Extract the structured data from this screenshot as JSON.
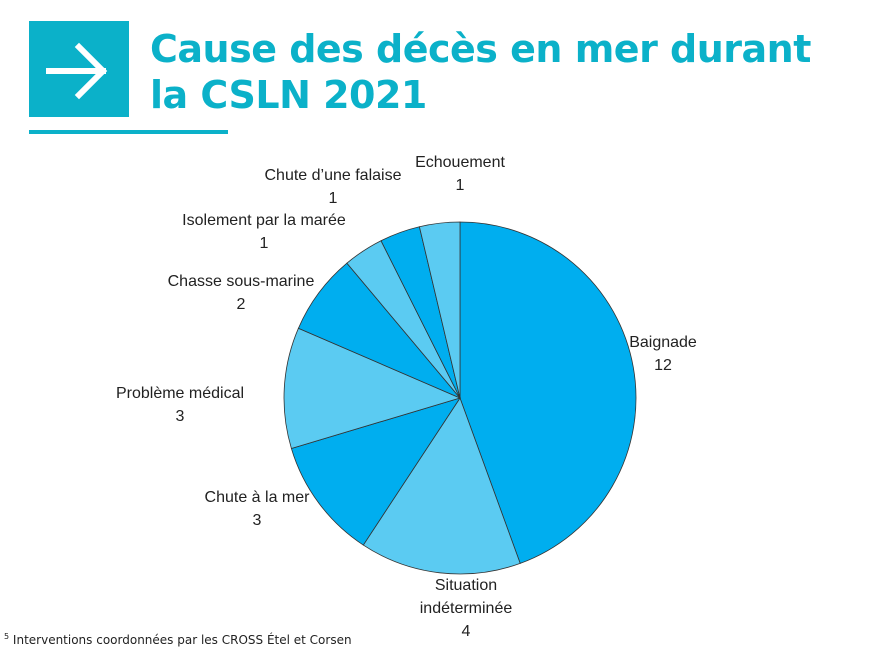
{
  "header": {
    "title_line1": "Cause des décès en mer durant",
    "title_line2": "la CSLN 2021",
    "icon": "arrow-right-icon",
    "accent_color": "#0bb1c9"
  },
  "chart_data": {
    "type": "pie",
    "start": "top",
    "direction": "clockwise",
    "categories": [
      "Baignade",
      "Situation indéterminée",
      "Chute à la mer",
      "Problème médical",
      "Chasse sous-marine",
      "Isolement par la marée",
      "Chute d’une falaise",
      "Echouement"
    ],
    "values": [
      12,
      4,
      3,
      3,
      2,
      1,
      1,
      1
    ],
    "colors": [
      "#00aeef",
      "#5bcbf2",
      "#00aeef",
      "#5bcbf2",
      "#00aeef",
      "#5bcbf2",
      "#00aeef",
      "#5bcbf2"
    ]
  },
  "footnote": {
    "marker": "5",
    "text": "Interventions coordonnées par les CROSS Étel et Corsen"
  }
}
